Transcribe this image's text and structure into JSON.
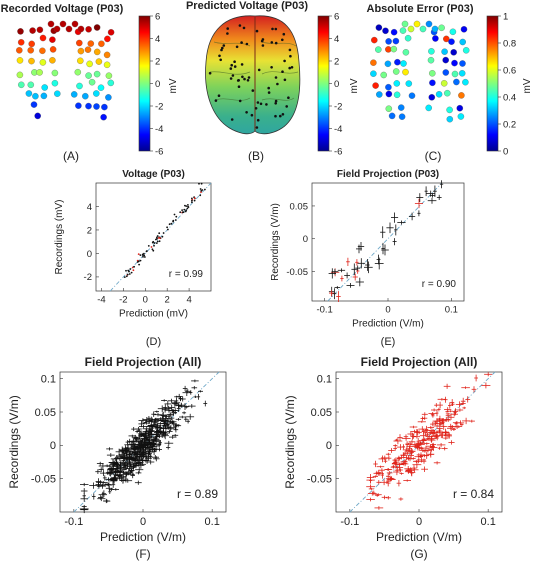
{
  "colors": {
    "marker_black": "#111111",
    "marker_red": "#e0241b",
    "identity_line": "#6fa8c8",
    "brain": "#3fb08a"
  },
  "top_row": {
    "colormap": "jet",
    "panels": [
      {
        "title": "Recorded Voltage (P03)",
        "caption": "(A)",
        "cbar_ticks": [
          "6",
          "4",
          "2",
          "0",
          "-2",
          "-4",
          "-6"
        ],
        "cbar_label": "mV"
      },
      {
        "title": "Predicted Voltage (P03)",
        "caption": "(B)",
        "cbar_ticks": [
          "6",
          "4",
          "2",
          "0",
          "-2",
          "-4",
          "-6"
        ],
        "cbar_label": "mV"
      },
      {
        "title": "Absolute Error (P03)",
        "caption": "(C)",
        "cbar_ticks": [
          "1",
          "0.8",
          "0.6",
          "0.4",
          "0.2",
          "0"
        ],
        "cbar_label": "mV"
      }
    ]
  },
  "chart_data": [
    {
      "id": "D",
      "type": "scatter",
      "title": "Voltage (P03)",
      "caption": "(D)",
      "xlabel": "Prediction (mV)",
      "ylabel": "Recordings (mV)",
      "xlim": [
        -4.5,
        6
      ],
      "ylim": [
        -3.2,
        6
      ],
      "xticks": [
        -4,
        -2,
        0,
        2,
        4
      ],
      "yticks": [
        -2,
        0,
        2,
        4
      ],
      "annotation": "r = 0.99",
      "marker": "dot",
      "trend": {
        "kind": "tight",
        "x0": -2,
        "x1": 5.5,
        "slope": 1.07,
        "icpt": 0.0,
        "noise": 0.22,
        "n": 90,
        "red_frac": 0.15,
        "seed": 7
      }
    },
    {
      "id": "E",
      "type": "scatter",
      "title": "Field Projection (P03)",
      "caption": "(E)",
      "xlabel": "Prediction (V/m)",
      "ylabel": "Recordings (V/m)",
      "xlim": [
        -0.12,
        0.12
      ],
      "ylim": [
        -0.095,
        0.085
      ],
      "xticks": [
        -0.1,
        0,
        0.1
      ],
      "yticks": [
        -0.05,
        0,
        0.05
      ],
      "annotation": "r = 0.90",
      "marker": "errbar",
      "trend": {
        "kind": "loose",
        "x0": -0.09,
        "x1": 0.085,
        "slope": 0.95,
        "icpt": 0.0,
        "noise": 0.017,
        "n": 48,
        "red_frac": 0.2,
        "seed": 13
      }
    },
    {
      "id": "F",
      "type": "scatter",
      "title": "Field Projection (All)",
      "caption": "(F)",
      "xlabel": "Prediction (V/m)",
      "ylabel": "Recordings (V/m)",
      "xlim": [
        -0.12,
        0.12
      ],
      "ylim": [
        -0.1,
        0.11
      ],
      "xticks": [
        -0.1,
        0,
        0.1
      ],
      "yticks": [
        -0.05,
        0,
        0.05,
        0.1
      ],
      "annotation": "r = 0.89",
      "marker": "errbar",
      "trend": {
        "kind": "cloud",
        "x0": -0.085,
        "x1": 0.09,
        "slope": 0.95,
        "icpt": 0.0,
        "noise": 0.017,
        "n": 520,
        "red_frac": 0.0,
        "seed": 21
      }
    },
    {
      "id": "G",
      "type": "scatter",
      "title": "Field Projection (All)",
      "caption": "(G)",
      "xlabel": "Prediction (V/m)",
      "ylabel": "Recordings (V/m)",
      "xlim": [
        -0.12,
        0.12
      ],
      "ylim": [
        -0.1,
        0.11
      ],
      "xticks": [
        -0.1,
        0,
        0.1
      ],
      "yticks": [
        -0.05,
        0,
        0.05,
        0.1
      ],
      "annotation": "r = 0.84",
      "marker": "errbar_red",
      "trend": {
        "kind": "cloud",
        "x0": -0.07,
        "x1": 0.1,
        "slope": 0.9,
        "icpt": 0.0,
        "noise": 0.02,
        "n": 260,
        "red_frac": 1.0,
        "seed": 33
      }
    }
  ]
}
